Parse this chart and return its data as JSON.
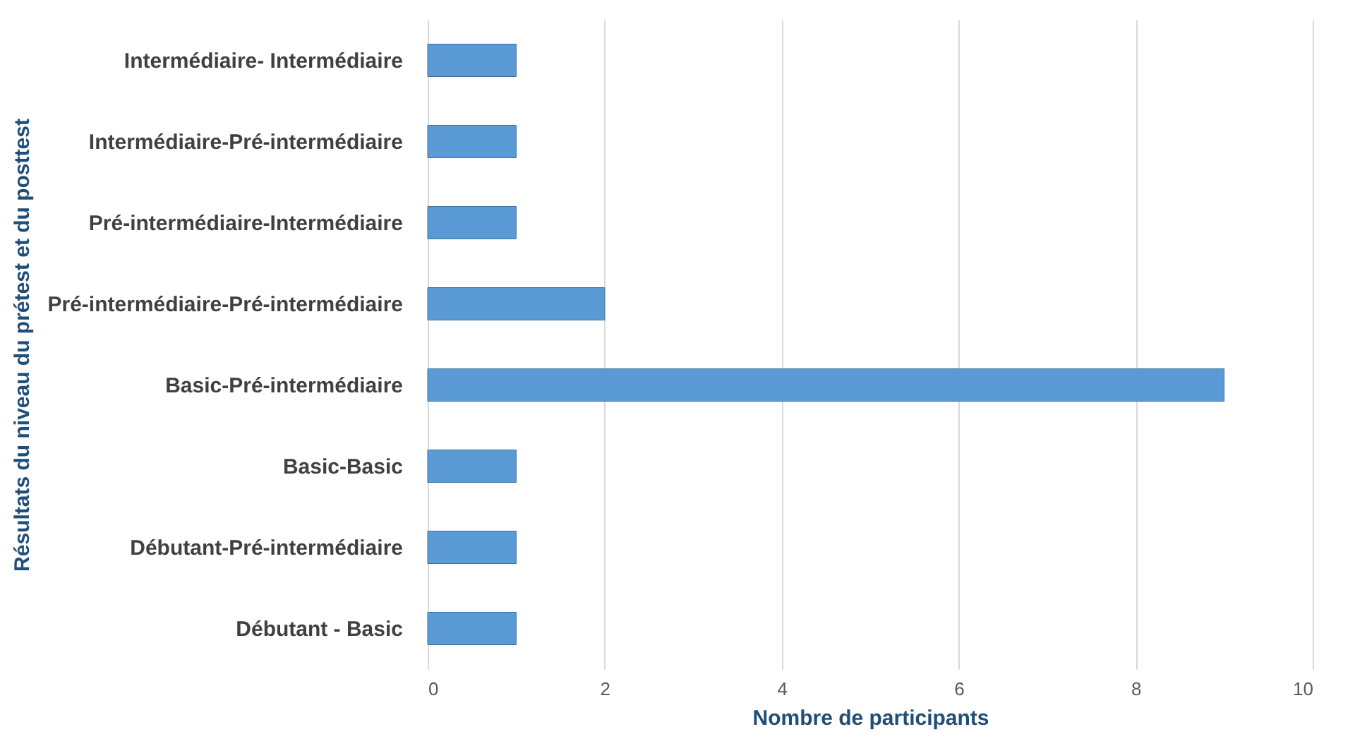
{
  "chart_data": {
    "type": "bar",
    "orientation": "horizontal",
    "xlabel": "Nombre de participants",
    "ylabel": "Résultats du niveau du prétest et du posttest",
    "categories": [
      "Intermédiaire- Intermédiaire",
      "Intermédiaire-Pré-intermédiaire",
      "Pré-intermédiaire-Intermédiaire",
      "Pré-intermédiaire-Pré-intermédiaire",
      "Basic-Pré-intermédiaire",
      "Basic-Basic",
      "Débutant-Pré-intermédiaire",
      "Débutant - Basic"
    ],
    "values": [
      1,
      1,
      1,
      2,
      9,
      1,
      1,
      1
    ],
    "color": "#5b9bd5",
    "xlim": [
      0,
      10
    ],
    "xticks": [
      0,
      2,
      4,
      6,
      8,
      10
    ],
    "grid": "x"
  }
}
